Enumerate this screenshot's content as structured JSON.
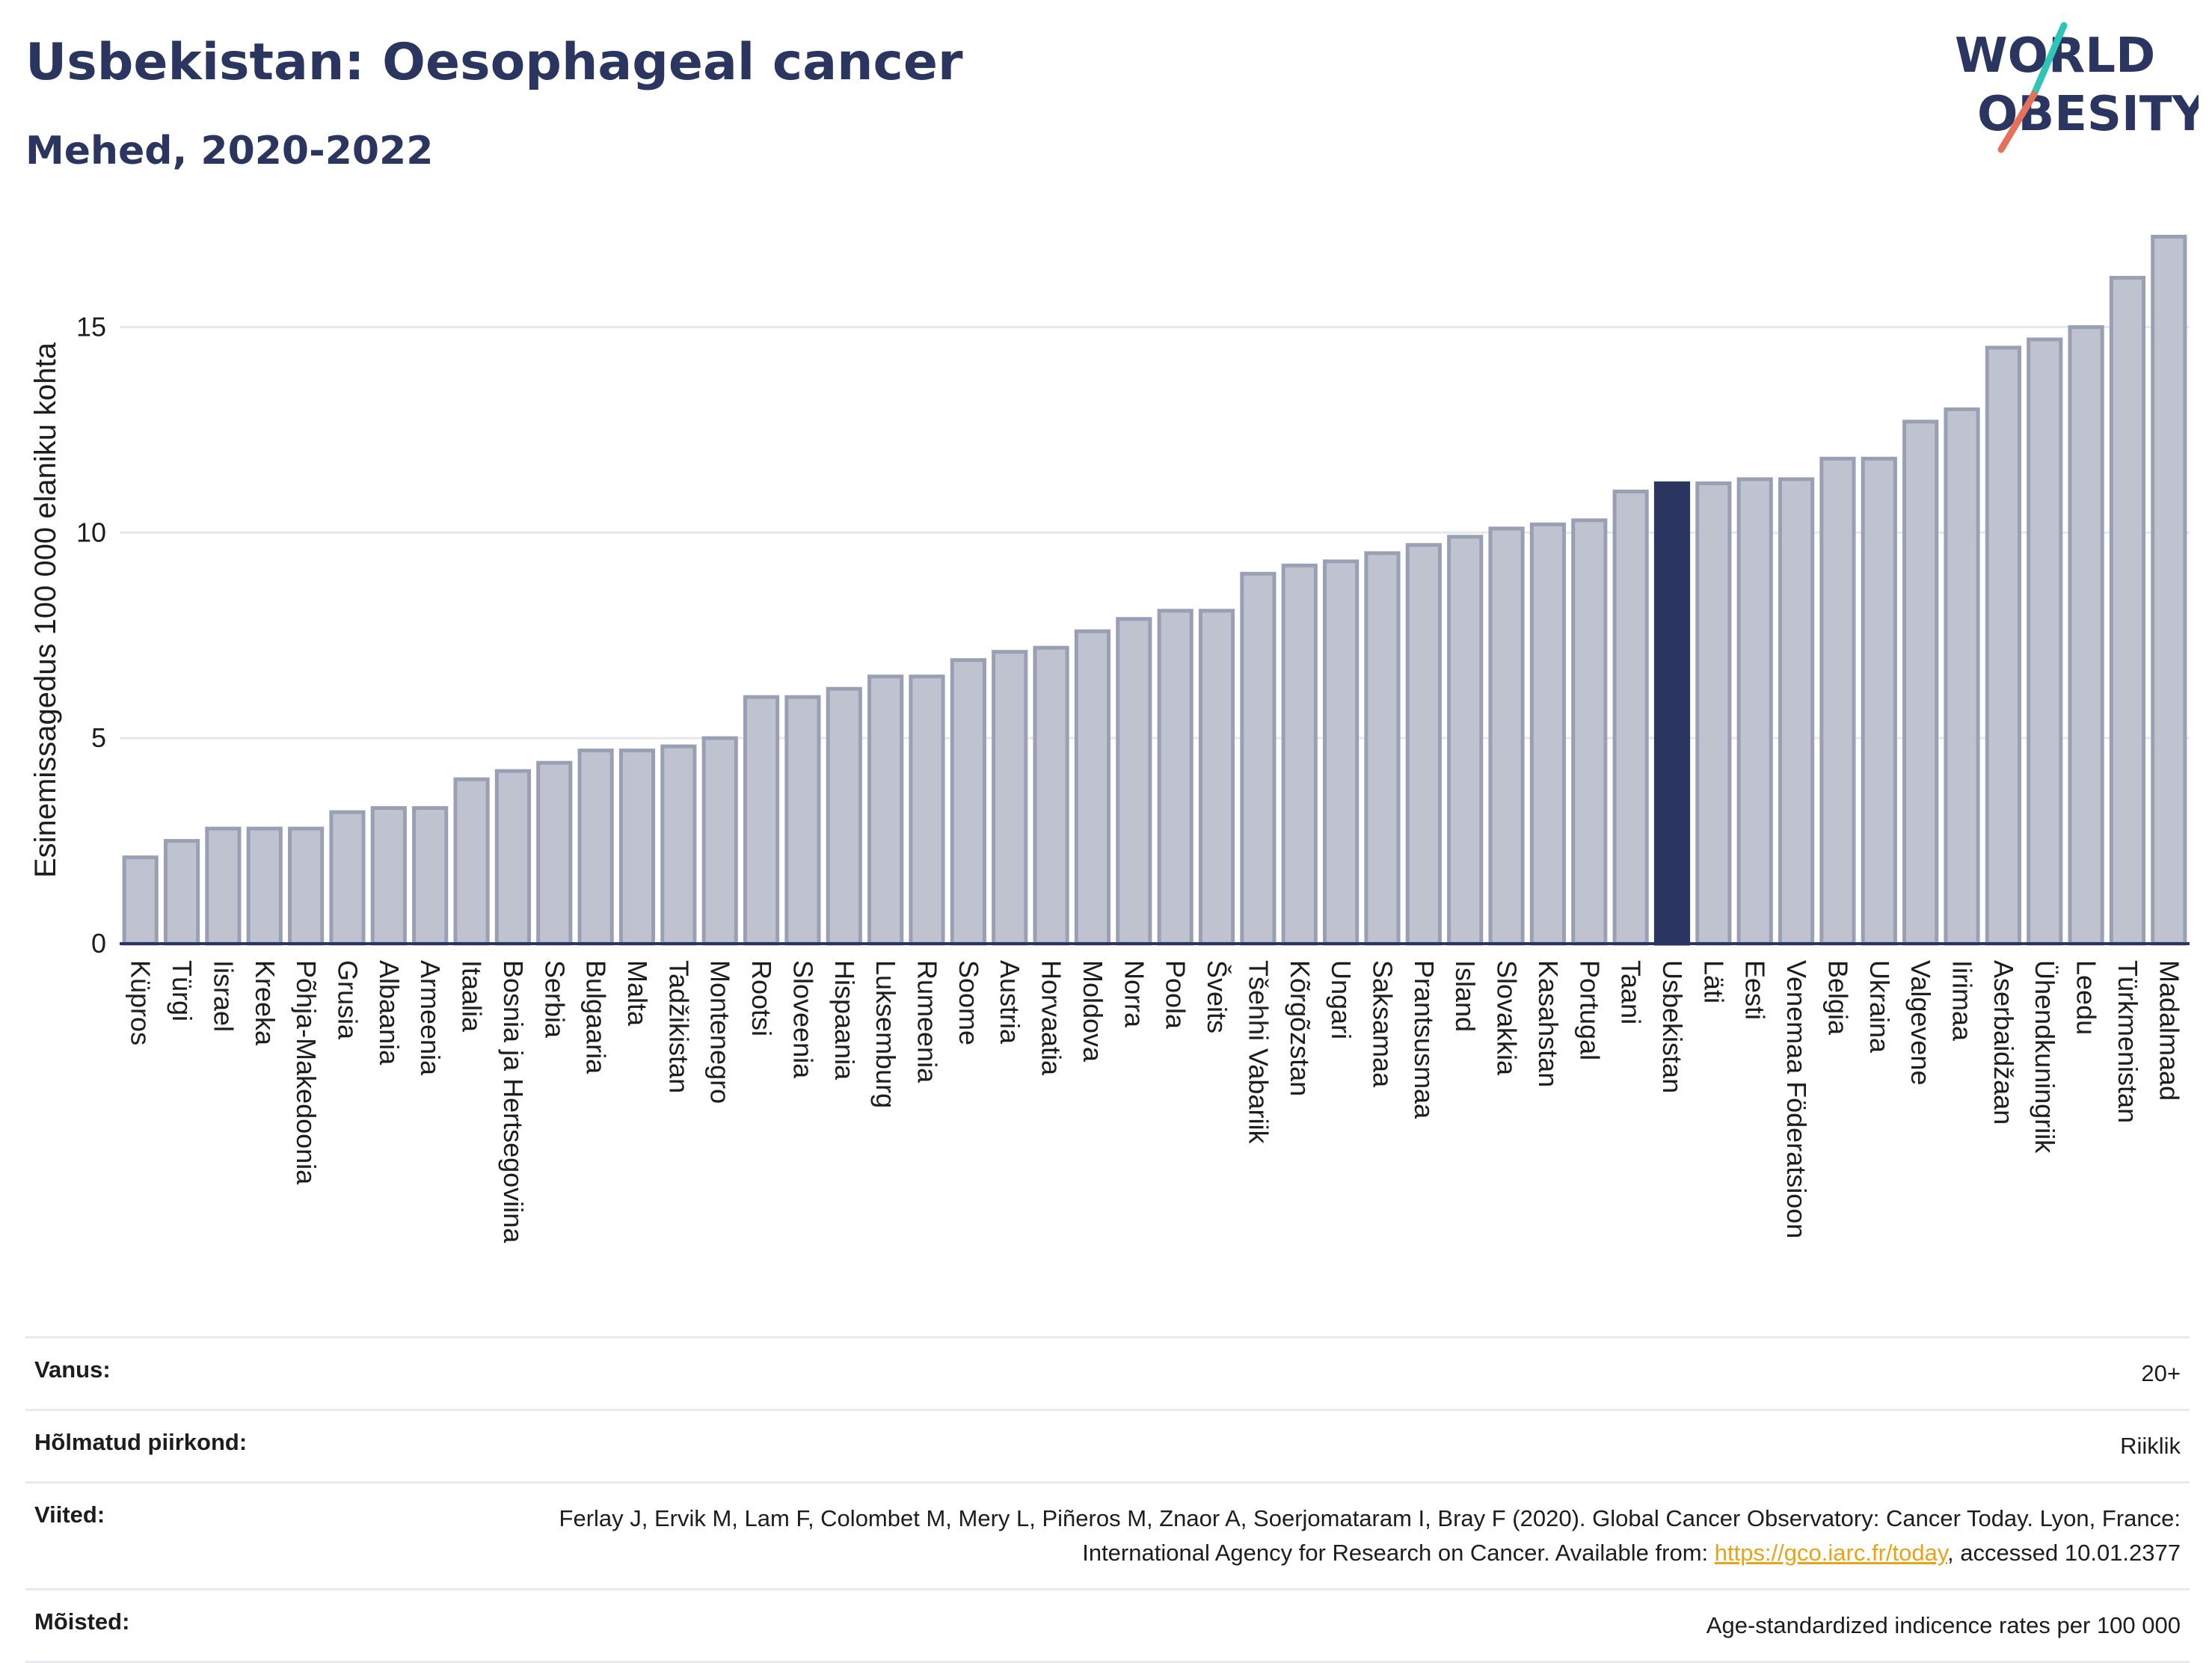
{
  "header": {
    "title": "Usbekistan: Oesophageal cancer",
    "subtitle": "Mehed, 2020-2022"
  },
  "logo": {
    "line1": "WORLD",
    "line2": "OBESITY",
    "accent_colors": [
      "#e2725b",
      "#2ec4b6"
    ]
  },
  "chart_data": {
    "type": "bar",
    "ylabel": "Esinemissagedus 100 000 elaniku kohta",
    "ylim": [
      0,
      17.5
    ],
    "yticks": [
      0,
      5,
      10,
      15
    ],
    "grid": true,
    "highlight": "Usbekistan",
    "colors": {
      "bar": "#bfc3cf",
      "bar_stroke": "#9aa0b4",
      "highlight": "#2a3560"
    },
    "categories": [
      "Küpros",
      "Türgi",
      "Iisrael",
      "Kreeka",
      "Põhja-Makedoonia",
      "Grusia",
      "Albaania",
      "Armeenia",
      "Itaalia",
      "Bosnia ja Hertsegoviina",
      "Serbia",
      "Bulgaaria",
      "Malta",
      "Tadžikistan",
      "Montenegro",
      "Rootsi",
      "Sloveenia",
      "Hispaania",
      "Luksemburg",
      "Rumeenia",
      "Soome",
      "Austria",
      "Horvaatia",
      "Moldova",
      "Norra",
      "Poola",
      "Šveits",
      "Tšehhi Vabariik",
      "Kõrgõzstan",
      "Ungari",
      "Saksamaa",
      "Prantsusmaa",
      "Island",
      "Slovakkia",
      "Kasahstan",
      "Portugal",
      "Taani",
      "Usbekistan",
      "Läti",
      "Eesti",
      "Venemaa Föderatsioon",
      "Belgia",
      "Ukraina",
      "Valgevene",
      "Iirimaa",
      "Aserbaidžaan",
      "Ühendkuningriik",
      "Leedu",
      "Türkmenistan",
      "Madalmaad"
    ],
    "values": [
      2.1,
      2.5,
      2.8,
      2.8,
      2.8,
      3.2,
      3.3,
      3.3,
      4.0,
      4.2,
      4.4,
      4.7,
      4.7,
      4.8,
      5.0,
      6.0,
      6.0,
      6.2,
      6.5,
      6.5,
      6.9,
      7.1,
      7.2,
      7.6,
      7.9,
      8.1,
      8.1,
      9.0,
      9.2,
      9.3,
      9.5,
      9.7,
      9.9,
      10.1,
      10.2,
      10.3,
      11.0,
      11.2,
      11.2,
      11.3,
      11.3,
      11.8,
      11.8,
      12.7,
      13.0,
      14.5,
      14.7,
      15.0,
      16.2,
      17.2
    ]
  },
  "footer": {
    "rows": [
      {
        "label": "Vanus:",
        "value": "20+"
      },
      {
        "label": "Hõlmatud piirkond:",
        "value": "Riiklik"
      },
      {
        "label": "Viited:",
        "value_before": "Ferlay J, Ervik M, Lam F, Colombet M, Mery L, Piñeros M, Znaor A, Soerjomataram I, Bray F (2020). Global Cancer Observatory: Cancer Today. Lyon, France: International Agency for Research on Cancer. Available from: ",
        "link": "https://gco.iarc.fr/today",
        "value_after": ", accessed 10.01.2377"
      },
      {
        "label": "Mõisted:",
        "value": "Age-standardized indicence rates per 100 000"
      }
    ]
  }
}
